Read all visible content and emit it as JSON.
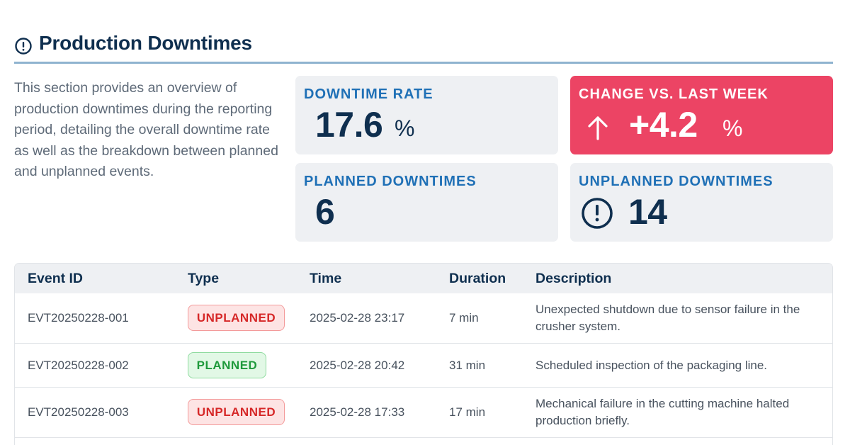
{
  "header": {
    "icon": "alert-circle-icon",
    "title": "Production Downtimes"
  },
  "intro": {
    "text": "This section provides an overview of production downtimes during the reporting period, detailing the overall downtime rate as well as the breakdown between planned and unplanned events."
  },
  "kpis": {
    "downtime_rate": {
      "label": "DOWNTIME RATE",
      "value": "17.6",
      "unit": "%"
    },
    "change": {
      "label": "CHANGE VS. LAST WEEK",
      "icon": "arrow-up-icon",
      "value": "+4.2",
      "unit": "%",
      "color": "#ec4464"
    },
    "planned": {
      "label": "PLANNED DOWNTIMES",
      "value": "6"
    },
    "unplanned": {
      "label": "UNPLANNED DOWNTIMES",
      "icon": "alert-circle-icon",
      "value": "14"
    }
  },
  "table": {
    "headers": [
      "Event ID",
      "Type",
      "Time",
      "Duration",
      "Description"
    ],
    "rows": [
      {
        "id": "EVT20250228-001",
        "type": "UNPLANNED",
        "time": "2025-02-28 23:17",
        "duration": "7 min",
        "description": "Unexpected shutdown due to sensor failure in the crusher system."
      },
      {
        "id": "EVT20250228-002",
        "type": "PLANNED",
        "time": "2025-02-28 20:42",
        "duration": "31 min",
        "description": "Scheduled inspection of the packaging line."
      },
      {
        "id": "EVT20250228-003",
        "type": "UNPLANNED",
        "time": "2025-02-28 17:33",
        "duration": "17 min",
        "description": "Mechanical failure in the cutting machine halted production briefly."
      }
    ]
  },
  "colors": {
    "title": "#0f2f4f",
    "accent_blue": "#1f70b6",
    "alert_red": "#ec4464",
    "unplanned_text": "#d62828",
    "planned_text": "#1f9a3c"
  }
}
